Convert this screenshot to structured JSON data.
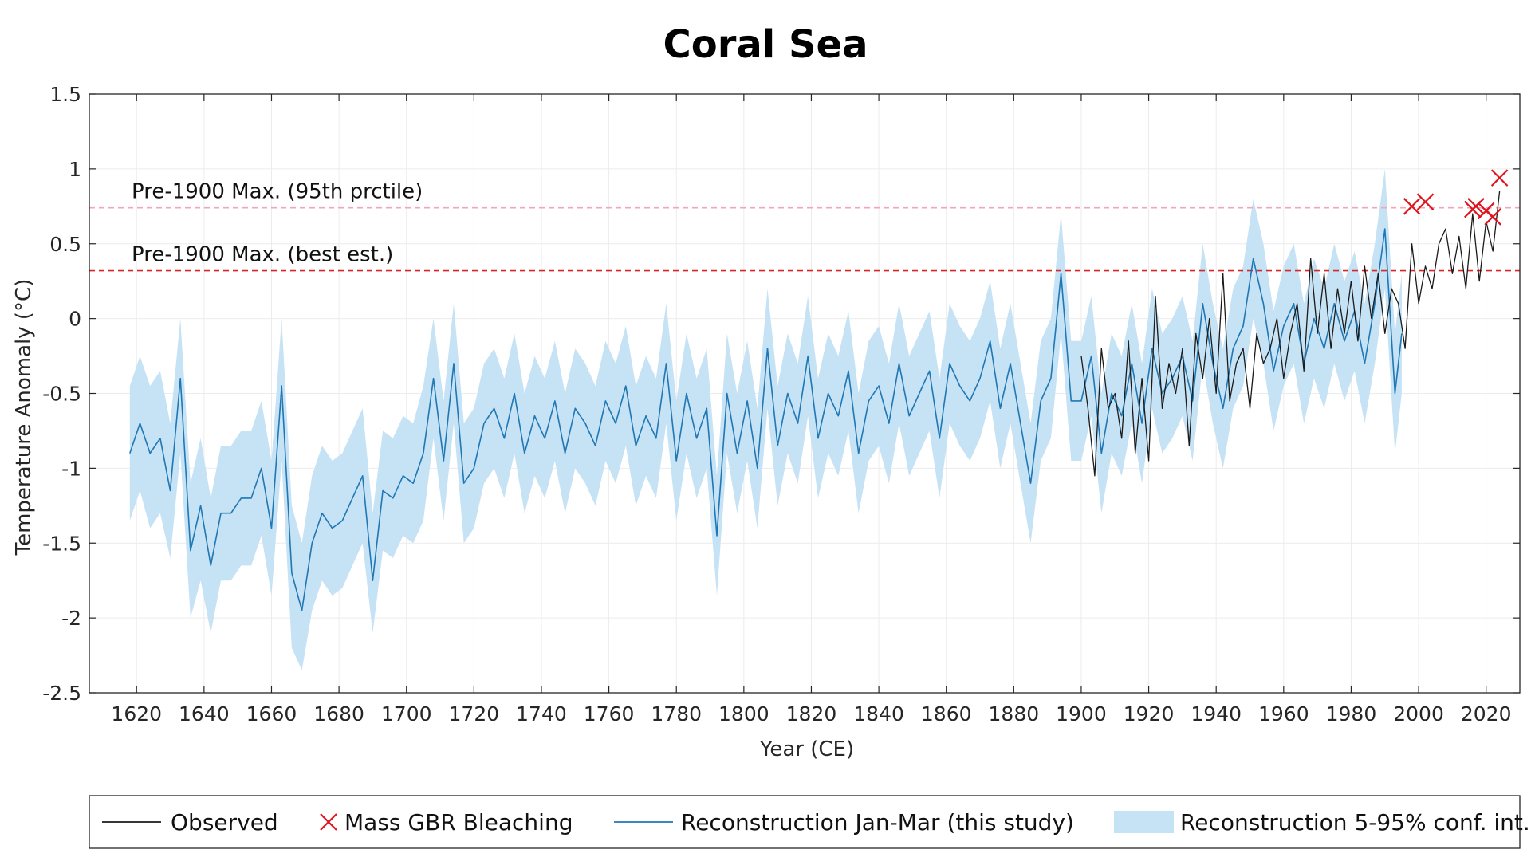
{
  "chart_data": {
    "type": "line",
    "title": "Coral Sea",
    "xlabel": "Year (CE)",
    "ylabel": "Temperature Anomaly (°C)",
    "xlim": [
      1606,
      2030
    ],
    "ylim": [
      -2.5,
      1.5
    ],
    "xticks": [
      "1620",
      "1640",
      "1660",
      "1680",
      "1700",
      "1720",
      "1740",
      "1760",
      "1780",
      "1800",
      "1820",
      "1840",
      "1860",
      "1880",
      "1900",
      "1920",
      "1940",
      "1960",
      "1980",
      "2000",
      "2020"
    ],
    "yticks": [
      "1.5",
      "1",
      "0.5",
      "0",
      "-0.5",
      "-1",
      "-1.5",
      "-2",
      "-2.5"
    ],
    "grid": true,
    "legend_placement": "bottom",
    "reference_lines": [
      {
        "label": "Pre-1900 Max. (95th prctile)",
        "y": 0.74,
        "style": "dashed",
        "color": "#f4a6b8"
      },
      {
        "label": "Pre-1900 Max. (best est.)",
        "y": 0.32,
        "style": "dashed",
        "color": "#d62728"
      }
    ],
    "legend": [
      {
        "label": "Observed",
        "kind": "line",
        "color": "#1a1a1a"
      },
      {
        "label": "Mass GBR Bleaching",
        "kind": "marker-x",
        "color": "#e0141e"
      },
      {
        "label": "Reconstruction Jan-Mar (this study)",
        "kind": "line",
        "color": "#1f77b4"
      },
      {
        "label": "Reconstruction 5-95% conf. int.",
        "kind": "patch",
        "color": "#c6e2f5"
      }
    ],
    "series": [
      {
        "name": "Reconstruction Jan-Mar (this study)",
        "color": "#1f77b4",
        "x": [
          1618,
          1621,
          1624,
          1627,
          1630,
          1633,
          1636,
          1639,
          1642,
          1645,
          1648,
          1651,
          1654,
          1657,
          1660,
          1663,
          1666,
          1669,
          1672,
          1675,
          1678,
          1681,
          1684,
          1687,
          1690,
          1693,
          1696,
          1699,
          1702,
          1705,
          1708,
          1711,
          1714,
          1717,
          1720,
          1723,
          1726,
          1729,
          1732,
          1735,
          1738,
          1741,
          1744,
          1747,
          1750,
          1753,
          1756,
          1759,
          1762,
          1765,
          1768,
          1771,
          1774,
          1777,
          1780,
          1783,
          1786,
          1789,
          1792,
          1795,
          1798,
          1801,
          1804,
          1807,
          1810,
          1813,
          1816,
          1819,
          1822,
          1825,
          1828,
          1831,
          1834,
          1837,
          1840,
          1843,
          1846,
          1849,
          1852,
          1855,
          1858,
          1861,
          1864,
          1867,
          1870,
          1873,
          1876,
          1879,
          1882,
          1885,
          1888,
          1891,
          1894,
          1897,
          1900,
          1903,
          1906,
          1909,
          1912,
          1915,
          1918,
          1921,
          1924,
          1927,
          1930,
          1933,
          1936,
          1939,
          1942,
          1945,
          1948,
          1951,
          1954,
          1957,
          1960,
          1963,
          1966,
          1969,
          1972,
          1975,
          1978,
          1981,
          1984,
          1987,
          1990,
          1993,
          1995
        ],
        "values": [
          -0.9,
          -0.7,
          -0.9,
          -0.8,
          -1.15,
          -0.4,
          -1.55,
          -1.25,
          -1.65,
          -1.3,
          -1.3,
          -1.2,
          -1.2,
          -1.0,
          -1.4,
          -0.45,
          -1.7,
          -1.95,
          -1.5,
          -1.3,
          -1.4,
          -1.35,
          -1.2,
          -1.05,
          -1.75,
          -1.15,
          -1.2,
          -1.05,
          -1.1,
          -0.9,
          -0.4,
          -0.95,
          -0.3,
          -1.1,
          -1.0,
          -0.7,
          -0.6,
          -0.8,
          -0.5,
          -0.9,
          -0.65,
          -0.8,
          -0.55,
          -0.9,
          -0.6,
          -0.7,
          -0.85,
          -0.55,
          -0.7,
          -0.45,
          -0.85,
          -0.65,
          -0.8,
          -0.3,
          -0.95,
          -0.5,
          -0.8,
          -0.6,
          -1.45,
          -0.5,
          -0.9,
          -0.55,
          -1.0,
          -0.2,
          -0.85,
          -0.5,
          -0.7,
          -0.25,
          -0.8,
          -0.5,
          -0.65,
          -0.35,
          -0.9,
          -0.55,
          -0.45,
          -0.7,
          -0.3,
          -0.65,
          -0.5,
          -0.35,
          -0.8,
          -0.3,
          -0.45,
          -0.55,
          -0.4,
          -0.15,
          -0.6,
          -0.3,
          -0.7,
          -1.1,
          -0.55,
          -0.4,
          0.3,
          -0.55,
          -0.55,
          -0.25,
          -0.9,
          -0.5,
          -0.65,
          -0.3,
          -0.7,
          -0.2,
          -0.5,
          -0.4,
          -0.25,
          -0.55,
          0.1,
          -0.3,
          -0.6,
          -0.2,
          -0.05,
          0.4,
          0.1,
          -0.35,
          -0.05,
          0.1,
          -0.3,
          0.0,
          -0.2,
          0.1,
          -0.15,
          0.05,
          -0.3,
          0.1,
          0.6,
          -0.5,
          -0.1
        ],
        "ci_lower": [
          -1.35,
          -1.15,
          -1.4,
          -1.3,
          -1.6,
          -0.9,
          -2.0,
          -1.75,
          -2.1,
          -1.75,
          -1.75,
          -1.65,
          -1.65,
          -1.45,
          -1.85,
          -0.95,
          -2.2,
          -2.35,
          -1.95,
          -1.75,
          -1.85,
          -1.8,
          -1.65,
          -1.5,
          -2.1,
          -1.55,
          -1.6,
          -1.45,
          -1.5,
          -1.35,
          -0.8,
          -1.35,
          -0.7,
          -1.5,
          -1.4,
          -1.1,
          -1.0,
          -1.2,
          -0.9,
          -1.3,
          -1.05,
          -1.2,
          -0.95,
          -1.3,
          -1.0,
          -1.1,
          -1.25,
          -0.95,
          -1.1,
          -0.85,
          -1.25,
          -1.05,
          -1.2,
          -0.7,
          -1.35,
          -0.9,
          -1.2,
          -1.0,
          -1.85,
          -0.9,
          -1.3,
          -0.95,
          -1.4,
          -0.6,
          -1.25,
          -0.9,
          -1.1,
          -0.65,
          -1.2,
          -0.9,
          -1.05,
          -0.75,
          -1.3,
          -0.95,
          -0.85,
          -1.1,
          -0.7,
          -1.05,
          -0.9,
          -0.75,
          -1.2,
          -0.7,
          -0.85,
          -0.95,
          -0.8,
          -0.55,
          -1.0,
          -0.7,
          -1.1,
          -1.5,
          -0.95,
          -0.8,
          -0.1,
          -0.95,
          -0.95,
          -0.65,
          -1.3,
          -0.9,
          -1.05,
          -0.7,
          -1.1,
          -0.6,
          -0.9,
          -0.8,
          -0.65,
          -0.95,
          -0.3,
          -0.7,
          -1.0,
          -0.6,
          -0.45,
          0.0,
          -0.3,
          -0.75,
          -0.45,
          -0.3,
          -0.7,
          -0.4,
          -0.6,
          -0.3,
          -0.55,
          -0.35,
          -0.7,
          -0.3,
          0.2,
          -0.9,
          -0.5
        ],
        "ci_upper": [
          -0.45,
          -0.25,
          -0.45,
          -0.35,
          -0.7,
          0.0,
          -1.1,
          -0.8,
          -1.2,
          -0.85,
          -0.85,
          -0.75,
          -0.75,
          -0.55,
          -0.95,
          0.0,
          -1.25,
          -1.5,
          -1.05,
          -0.85,
          -0.95,
          -0.9,
          -0.75,
          -0.6,
          -1.3,
          -0.75,
          -0.8,
          -0.65,
          -0.7,
          -0.45,
          0.0,
          -0.55,
          0.1,
          -0.7,
          -0.6,
          -0.3,
          -0.2,
          -0.4,
          -0.1,
          -0.5,
          -0.25,
          -0.4,
          -0.15,
          -0.5,
          -0.2,
          -0.3,
          -0.45,
          -0.15,
          -0.3,
          -0.05,
          -0.45,
          -0.25,
          -0.4,
          0.1,
          -0.55,
          -0.1,
          -0.4,
          -0.2,
          -1.05,
          -0.1,
          -0.5,
          -0.15,
          -0.6,
          0.2,
          -0.45,
          -0.1,
          -0.3,
          0.15,
          -0.4,
          -0.1,
          -0.25,
          0.05,
          -0.5,
          -0.15,
          -0.05,
          -0.3,
          0.1,
          -0.25,
          -0.1,
          0.05,
          -0.4,
          0.1,
          -0.05,
          -0.15,
          0.0,
          0.25,
          -0.2,
          0.1,
          -0.3,
          -0.7,
          -0.15,
          0.0,
          0.7,
          -0.15,
          -0.15,
          0.15,
          -0.5,
          -0.1,
          -0.25,
          0.1,
          -0.3,
          0.2,
          -0.1,
          0.0,
          0.15,
          -0.15,
          0.5,
          0.1,
          -0.2,
          0.2,
          0.35,
          0.8,
          0.5,
          0.05,
          0.35,
          0.5,
          0.1,
          0.4,
          0.2,
          0.5,
          0.25,
          0.45,
          0.1,
          0.5,
          1.0,
          -0.1,
          0.3
        ]
      },
      {
        "name": "Observed",
        "color": "#1a1a1a",
        "x": [
          1900,
          1902,
          1904,
          1906,
          1908,
          1910,
          1912,
          1914,
          1916,
          1918,
          1920,
          1922,
          1924,
          1926,
          1928,
          1930,
          1932,
          1934,
          1936,
          1938,
          1940,
          1942,
          1944,
          1946,
          1948,
          1950,
          1952,
          1954,
          1956,
          1958,
          1960,
          1962,
          1964,
          1966,
          1968,
          1970,
          1972,
          1974,
          1976,
          1978,
          1980,
          1982,
          1984,
          1986,
          1988,
          1990,
          1992,
          1994,
          1996,
          1998,
          2000,
          2002,
          2004,
          2006,
          2008,
          2010,
          2012,
          2014,
          2016,
          2018,
          2020,
          2022,
          2024
        ],
        "values": [
          -0.25,
          -0.6,
          -1.05,
          -0.2,
          -0.6,
          -0.5,
          -0.8,
          -0.15,
          -0.9,
          -0.4,
          -0.95,
          0.15,
          -0.6,
          -0.3,
          -0.5,
          -0.2,
          -0.85,
          -0.1,
          -0.4,
          0.0,
          -0.5,
          0.3,
          -0.55,
          -0.3,
          -0.2,
          -0.6,
          -0.1,
          -0.3,
          -0.2,
          0.0,
          -0.4,
          -0.1,
          0.1,
          -0.35,
          0.4,
          -0.1,
          0.3,
          -0.2,
          0.2,
          -0.1,
          0.25,
          -0.15,
          0.35,
          0.0,
          0.3,
          -0.1,
          0.2,
          0.1,
          -0.2,
          0.5,
          0.1,
          0.35,
          0.2,
          0.5,
          0.6,
          0.3,
          0.55,
          0.2,
          0.7,
          0.25,
          0.65,
          0.45,
          0.85
        ]
      }
    ],
    "markers": {
      "name": "Mass GBR Bleaching",
      "x": [
        1998,
        2002,
        2016,
        2017,
        2020,
        2022,
        2024
      ],
      "values": [
        0.75,
        0.78,
        0.73,
        0.75,
        0.72,
        0.68,
        0.94
      ]
    }
  }
}
